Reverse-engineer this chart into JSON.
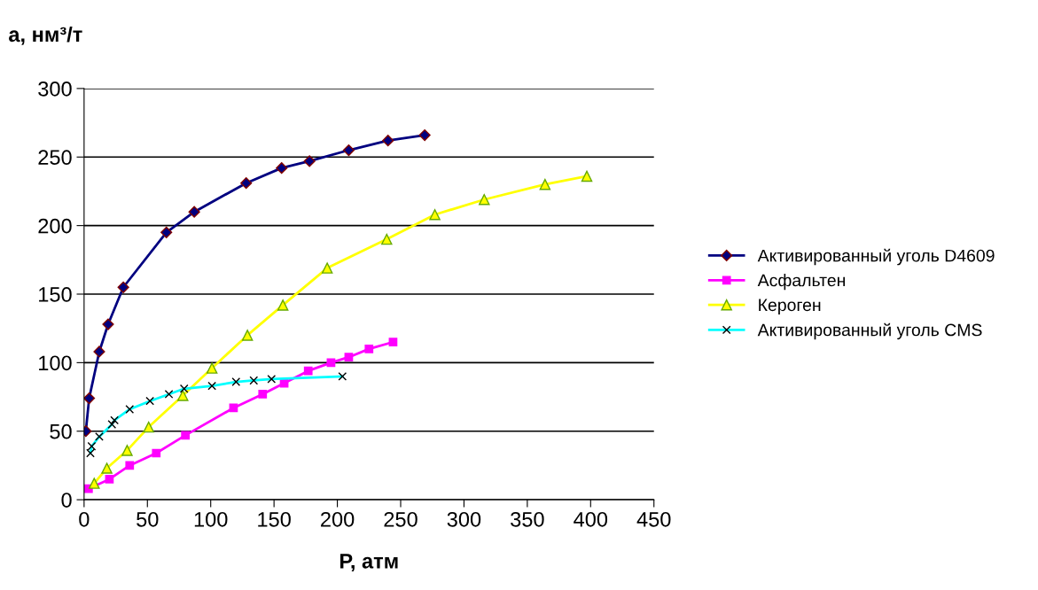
{
  "chart_data": {
    "type": "line",
    "xlabel": "Р, атм",
    "ylabel": "а, нм³/т",
    "xlim": [
      0,
      450
    ],
    "ylim": [
      0,
      300
    ],
    "xticks": [
      0,
      50,
      100,
      150,
      200,
      250,
      300,
      350,
      400,
      450
    ],
    "yticks": [
      0,
      50,
      100,
      150,
      200,
      250,
      300
    ],
    "grid": "y",
    "legend": "right",
    "series": [
      {
        "name": "Активированный уголь D4609",
        "color": "#000080",
        "marker": "diamond",
        "x": [
          1.4,
          4,
          12,
          19,
          31,
          65,
          87,
          128,
          156,
          178,
          209,
          240,
          269
        ],
        "values": [
          50,
          74,
          108,
          128,
          155,
          195,
          210,
          231,
          242,
          247,
          255,
          262,
          266
        ]
      },
      {
        "name": "Асфальтен",
        "color": "#ff00ff",
        "marker": "square",
        "x": [
          3.5,
          20,
          36,
          57,
          80,
          118,
          141,
          158,
          177,
          195,
          209,
          225,
          244
        ],
        "values": [
          8,
          15,
          25,
          34,
          47,
          67,
          77,
          85,
          94,
          100,
          104,
          110,
          115
        ]
      },
      {
        "name": "Кероген",
        "color": "#ffff00",
        "marker": "triangle",
        "x": [
          8,
          18,
          34,
          51,
          78,
          101,
          129,
          157,
          192,
          239,
          277,
          316,
          364,
          397
        ],
        "values": [
          12,
          23,
          36,
          53,
          76,
          96,
          120,
          142,
          169,
          190,
          208,
          219,
          230,
          236
        ]
      },
      {
        "name": "Активированный уголь CMS",
        "color": "#00ffff",
        "marker": "cross",
        "x": [
          5,
          6,
          12,
          22,
          24,
          36,
          52,
          67,
          79,
          101,
          120,
          134,
          148,
          204
        ],
        "values": [
          34,
          39,
          46,
          55,
          58,
          66,
          72,
          77,
          81,
          83,
          86,
          87,
          88,
          90
        ]
      }
    ]
  }
}
